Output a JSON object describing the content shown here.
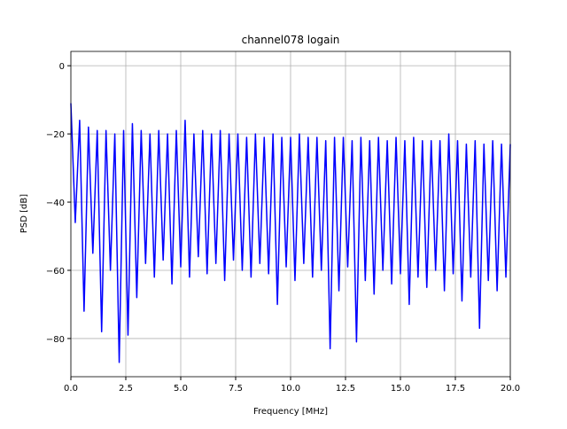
{
  "chart_data": {
    "type": "line",
    "title": "channel078 logain",
    "xlabel": "Frequency [MHz]",
    "ylabel": "PSD [dB]",
    "x": [
      0,
      0.2,
      0.4,
      0.6,
      0.8,
      1.0,
      1.2,
      1.4,
      1.6,
      1.8,
      2.0,
      2.2,
      2.4,
      2.6,
      2.8,
      3.0,
      3.2,
      3.4,
      3.6,
      3.8,
      4.0,
      4.2,
      4.4,
      4.6,
      4.8,
      5.0,
      5.2,
      5.4,
      5.6,
      5.8,
      6.0,
      6.2,
      6.4,
      6.6,
      6.8,
      7.0,
      7.2,
      7.4,
      7.6,
      7.8,
      8.0,
      8.2,
      8.4,
      8.6,
      8.8,
      9.0,
      9.2,
      9.4,
      9.6,
      9.8,
      10.0,
      10.2,
      10.4,
      10.6,
      10.8,
      11.0,
      11.2,
      11.4,
      11.6,
      11.8,
      12.0,
      12.2,
      12.4,
      12.6,
      12.8,
      13.0,
      13.2,
      13.4,
      13.6,
      13.8,
      14.0,
      14.2,
      14.4,
      14.6,
      14.8,
      15.0,
      15.2,
      15.4,
      15.6,
      15.8,
      16.0,
      16.2,
      16.4,
      16.6,
      16.8,
      17.0,
      17.2,
      17.4,
      17.6,
      17.8,
      18.0,
      18.2,
      18.4,
      18.6,
      18.8,
      19.0,
      19.2,
      19.4,
      19.6,
      19.8,
      20.0
    ],
    "series": [
      {
        "name": "PSD",
        "color": "#0000ff",
        "values": [
          -11,
          -46,
          -16,
          -72,
          -18,
          -55,
          -19,
          -78,
          -19,
          -60,
          -20,
          -87,
          -19,
          -79,
          -17,
          -68,
          -19,
          -58,
          -20,
          -62,
          -19,
          -57,
          -20,
          -64,
          -19,
          -59,
          -16,
          -62,
          -20,
          -56,
          -19,
          -61,
          -20,
          -58,
          -19,
          -63,
          -20,
          -57,
          -20,
          -60,
          -21,
          -62,
          -20,
          -58,
          -21,
          -61,
          -20,
          -70,
          -21,
          -59,
          -21,
          -63,
          -20,
          -58,
          -21,
          -62,
          -21,
          -60,
          -22,
          -83,
          -21,
          -66,
          -21,
          -59,
          -22,
          -81,
          -21,
          -63,
          -22,
          -67,
          -21,
          -60,
          -22,
          -64,
          -21,
          -61,
          -22,
          -70,
          -21,
          -62,
          -22,
          -65,
          -22,
          -60,
          -22,
          -66,
          -20,
          -61,
          -22,
          -69,
          -23,
          -62,
          -22,
          -77,
          -23,
          -63,
          -22,
          -66,
          -23,
          -62,
          -23
        ]
      }
    ],
    "xlim": [
      0,
      20
    ],
    "ylim": [
      -91.2,
      4.2
    ],
    "xticks": [
      {
        "value": 0,
        "label": "0.0"
      },
      2.5,
      {
        "value": 5,
        "label": "5.0"
      },
      7.5,
      {
        "value": 10,
        "label": "10.0"
      },
      12.5,
      {
        "value": 15,
        "label": "15.0"
      },
      17.5,
      {
        "value": 20,
        "label": "20.0"
      }
    ],
    "yticks": [
      0,
      {
        "value": -20,
        "label": "−20"
      },
      {
        "value": -40,
        "label": "−40"
      },
      {
        "value": -60,
        "label": "−60"
      },
      {
        "value": -80,
        "label": "−80"
      }
    ],
    "grid": true
  }
}
